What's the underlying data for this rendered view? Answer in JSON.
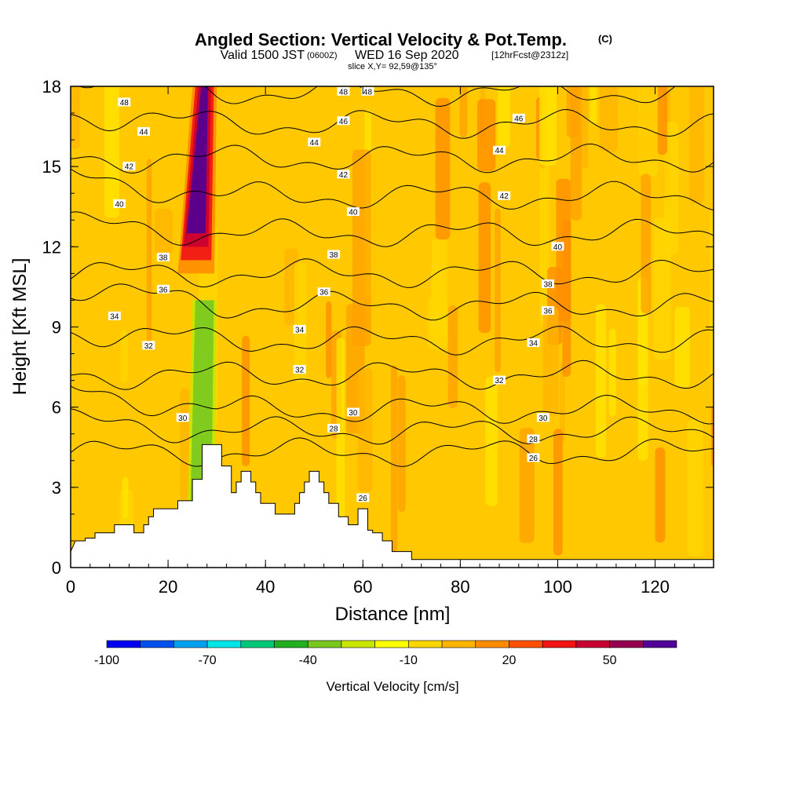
{
  "chart_data": {
    "type": "heatmap",
    "title": "Angled Section: Vertical Velocity & Pot.Temp.",
    "title_suffix": "(C)",
    "subtitle_parts": [
      "Valid 1500 JST",
      "(0600Z)",
      "WED 16 Sep 2020",
      "[12hrFcst@2312z]"
    ],
    "slice_label": "slice X,Y= 92,59@135°",
    "xlabel": "Distance [nm]",
    "ylabel": "Height [Kft MSL]",
    "xlim": [
      0,
      132
    ],
    "ylim": [
      0,
      18
    ],
    "x_ticks": [
      "0",
      "20",
      "40",
      "60",
      "80",
      "100",
      "120"
    ],
    "y_ticks": [
      "0",
      "3",
      "6",
      "9",
      "12",
      "15",
      "18"
    ],
    "colorbar": {
      "label": "Vertical Velocity [cm/s]",
      "tick_labels": [
        "-100",
        "-70",
        "-40",
        "-10",
        "20",
        "50"
      ],
      "colors": [
        "#0000f0",
        "#0050f0",
        "#00a0f0",
        "#00e6e6",
        "#00c878",
        "#20b020",
        "#78c820",
        "#c8e600",
        "#ffff00",
        "#ffd700",
        "#ffb400",
        "#ff8c00",
        "#ff5000",
        "#f01414",
        "#c80032",
        "#960050",
        "#500096"
      ]
    },
    "terrain_kft": [
      [
        0,
        0.6
      ],
      [
        1,
        1
      ],
      [
        3,
        1
      ],
      [
        3,
        1.1
      ],
      [
        5,
        1.1
      ],
      [
        5,
        1.3
      ],
      [
        9,
        1.3
      ],
      [
        9,
        1.6
      ],
      [
        13,
        1.6
      ],
      [
        13,
        1.3
      ],
      [
        15,
        1.3
      ],
      [
        15,
        1.6
      ],
      [
        16,
        1.6
      ],
      [
        16,
        1.9
      ],
      [
        17,
        1.9
      ],
      [
        17,
        2.2
      ],
      [
        22,
        2.2
      ],
      [
        22,
        2.5
      ],
      [
        25,
        2.5
      ],
      [
        25,
        3.3
      ],
      [
        27,
        3.3
      ],
      [
        27,
        4.6
      ],
      [
        31,
        4.6
      ],
      [
        31,
        3.8
      ],
      [
        33,
        3.8
      ],
      [
        33,
        2.8
      ],
      [
        34,
        2.8
      ],
      [
        34,
        3.2
      ],
      [
        35,
        3.2
      ],
      [
        35,
        3.6
      ],
      [
        37,
        3.6
      ],
      [
        37,
        3.2
      ],
      [
        38,
        3.2
      ],
      [
        38,
        2.8
      ],
      [
        39,
        2.8
      ],
      [
        39,
        2.4
      ],
      [
        42,
        2.4
      ],
      [
        42,
        2
      ],
      [
        46,
        2
      ],
      [
        46,
        2.4
      ],
      [
        47,
        2.4
      ],
      [
        47,
        2.8
      ],
      [
        48,
        2.8
      ],
      [
        48,
        3.2
      ],
      [
        49,
        3.2
      ],
      [
        49,
        3.6
      ],
      [
        51,
        3.6
      ],
      [
        51,
        3.2
      ],
      [
        52,
        3.2
      ],
      [
        52,
        2.8
      ],
      [
        53,
        2.8
      ],
      [
        53,
        2.4
      ],
      [
        55,
        2.4
      ],
      [
        55,
        1.9
      ],
      [
        57,
        1.9
      ],
      [
        57,
        1.6
      ],
      [
        59,
        1.6
      ],
      [
        59,
        2.2
      ],
      [
        61,
        2.2
      ],
      [
        61,
        1.4
      ],
      [
        62,
        1.4
      ],
      [
        62,
        1.3
      ],
      [
        64,
        1.3
      ],
      [
        64,
        1
      ],
      [
        66,
        1
      ],
      [
        66,
        0.6
      ],
      [
        70,
        0.6
      ],
      [
        70,
        0.3
      ],
      [
        132,
        0.3
      ]
    ],
    "theta_levels": [
      {
        "value": "26",
        "base": 4.3
      },
      {
        "value": "28",
        "base": 5.1
      },
      {
        "value": "30",
        "base": 5.9
      },
      {
        "value": "32",
        "base": 7.2
      },
      {
        "value": "34",
        "base": 8.5
      },
      {
        "value": "36",
        "base": 9.8
      },
      {
        "value": "38",
        "base": 11.0
      },
      {
        "value": "40",
        "base": 12.5
      },
      {
        "value": "42",
        "base": 13.9
      },
      {
        "value": "44",
        "base": 15.3
      },
      {
        "value": "46",
        "base": 16.6
      },
      {
        "value": "48",
        "base": 17.8
      }
    ],
    "contour_labels": [
      {
        "text": "48",
        "x": 11,
        "y": 17.4
      },
      {
        "text": "48",
        "x": 56,
        "y": 17.8
      },
      {
        "text": "48",
        "x": 61,
        "y": 17.8
      },
      {
        "text": "46",
        "x": 56,
        "y": 16.7
      },
      {
        "text": "46",
        "x": 92,
        "y": 16.8
      },
      {
        "text": "44",
        "x": 15,
        "y": 16.3
      },
      {
        "text": "44",
        "x": 50,
        "y": 15.9
      },
      {
        "text": "44",
        "x": 88,
        "y": 15.6
      },
      {
        "text": "42",
        "x": 12,
        "y": 15.0
      },
      {
        "text": "42",
        "x": 56,
        "y": 14.7
      },
      {
        "text": "42",
        "x": 89,
        "y": 13.9
      },
      {
        "text": "40",
        "x": 10,
        "y": 13.6
      },
      {
        "text": "40",
        "x": 58,
        "y": 13.3
      },
      {
        "text": "40",
        "x": 100,
        "y": 12.0
      },
      {
        "text": "38",
        "x": 19,
        "y": 11.6
      },
      {
        "text": "38",
        "x": 54,
        "y": 11.7
      },
      {
        "text": "38",
        "x": 98,
        "y": 10.6
      },
      {
        "text": "36",
        "x": 19,
        "y": 10.4
      },
      {
        "text": "36",
        "x": 52,
        "y": 10.3
      },
      {
        "text": "36",
        "x": 98,
        "y": 9.6
      },
      {
        "text": "34",
        "x": 9,
        "y": 9.4
      },
      {
        "text": "34",
        "x": 47,
        "y": 8.9
      },
      {
        "text": "34",
        "x": 95,
        "y": 8.4
      },
      {
        "text": "32",
        "x": 16,
        "y": 8.3
      },
      {
        "text": "32",
        "x": 47,
        "y": 7.4
      },
      {
        "text": "32",
        "x": 88,
        "y": 7.0
      },
      {
        "text": "30",
        "x": 23,
        "y": 5.6
      },
      {
        "text": "30",
        "x": 58,
        "y": 5.8
      },
      {
        "text": "30",
        "x": 97,
        "y": 5.6
      },
      {
        "text": "28",
        "x": 54,
        "y": 5.2
      },
      {
        "text": "28",
        "x": 95,
        "y": 4.8
      },
      {
        "text": "26",
        "x": 95,
        "y": 4.1
      },
      {
        "text": "26",
        "x": 60,
        "y": 2.6
      }
    ],
    "features": [
      {
        "kind": "strong updraft column",
        "x": [
          24,
          30
        ],
        "y": [
          11,
          18
        ],
        "value_cm_s": 55
      },
      {
        "kind": "weak downdraft",
        "x": [
          24,
          30
        ],
        "y": [
          2,
          10
        ],
        "value_cm_s": -30
      }
    ]
  }
}
